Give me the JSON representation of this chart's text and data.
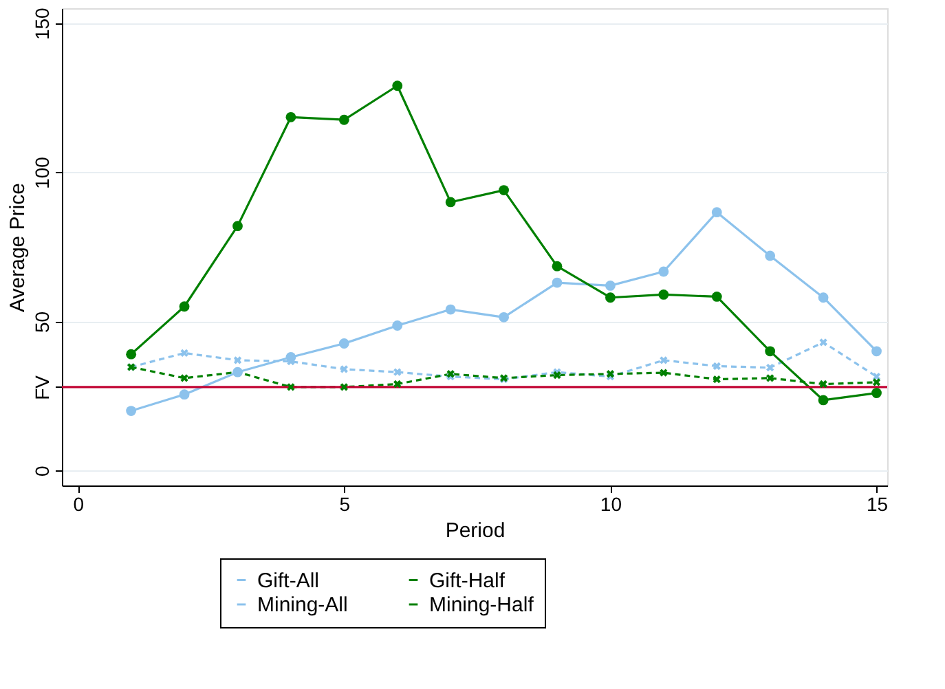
{
  "chart_data": {
    "type": "line",
    "xlabel": "Period",
    "ylabel": "Average Price",
    "x": [
      1,
      2,
      3,
      4,
      5,
      6,
      7,
      8,
      9,
      10,
      11,
      12,
      13,
      14,
      15
    ],
    "xlim": [
      -0.3,
      15.2
    ],
    "xticks": [
      0,
      5,
      10,
      15
    ],
    "ylim": [
      -5,
      155
    ],
    "yticks": [
      0,
      {
        "value": 28,
        "label": "FV"
      },
      50,
      100,
      150
    ],
    "grid": "y",
    "legend": "bottom",
    "ref_lines": [
      {
        "axis": "y",
        "value": 28,
        "color": "#c10534"
      }
    ],
    "series": [
      {
        "name": "Gift-All",
        "color": "#8cc2ec",
        "line_style": "dashed",
        "marker": "cross",
        "values": [
          34.7,
          39.4,
          37,
          36.6,
          34,
          33,
          31.5,
          30.6,
          33,
          31.5,
          37,
          35,
          34.5,
          43,
          31.5
        ]
      },
      {
        "name": "Gift-Half",
        "color": "#008000",
        "line_style": "dashed",
        "marker": "cross",
        "values": [
          34.7,
          31,
          33,
          28,
          28,
          29,
          32.4,
          31,
          32,
          32.4,
          32.8,
          30.6,
          31,
          29,
          29.6
        ]
      },
      {
        "name": "Mining-All",
        "color": "#8cc2ec",
        "line_style": "solid",
        "marker": "circle",
        "values": [
          20,
          25.5,
          33,
          38,
          42.6,
          48.6,
          54,
          51.4,
          63,
          62,
          66.7,
          86.6,
          72,
          58,
          40
        ]
      },
      {
        "name": "Mining-Half",
        "color": "#008000",
        "line_style": "solid",
        "marker": "circle",
        "values": [
          39,
          55,
          82,
          118.5,
          117.6,
          129,
          90,
          94,
          68.5,
          58,
          59,
          58.3,
          40,
          23.6,
          26
        ]
      }
    ]
  }
}
